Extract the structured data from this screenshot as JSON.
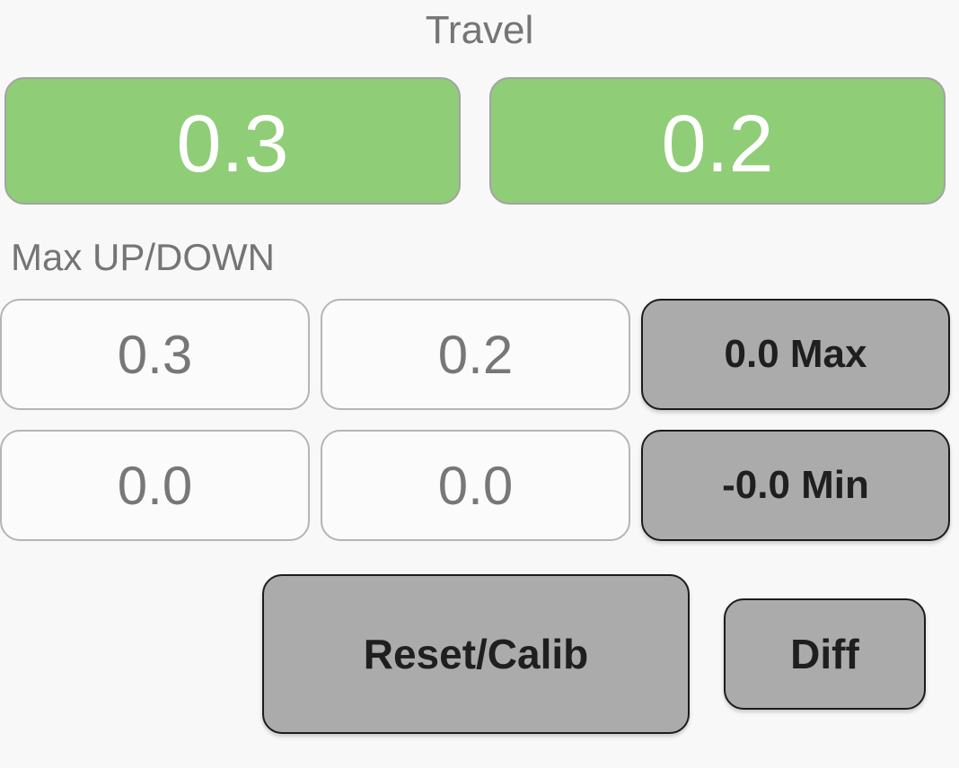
{
  "travel": {
    "title": "Travel",
    "left_value": "0.3",
    "right_value": "0.2",
    "color": "#8fcd77"
  },
  "max_updown": {
    "label": "Max UP/DOWN",
    "max_up": "0.3",
    "max_down": "0.2",
    "min_up": "0.0",
    "min_down": "0.0"
  },
  "buttons": {
    "max_label": "0.0 Max",
    "min_label": "-0.0 Min",
    "reset_label": "Reset/Calib",
    "diff_label": "Diff",
    "color": "#ababab"
  }
}
